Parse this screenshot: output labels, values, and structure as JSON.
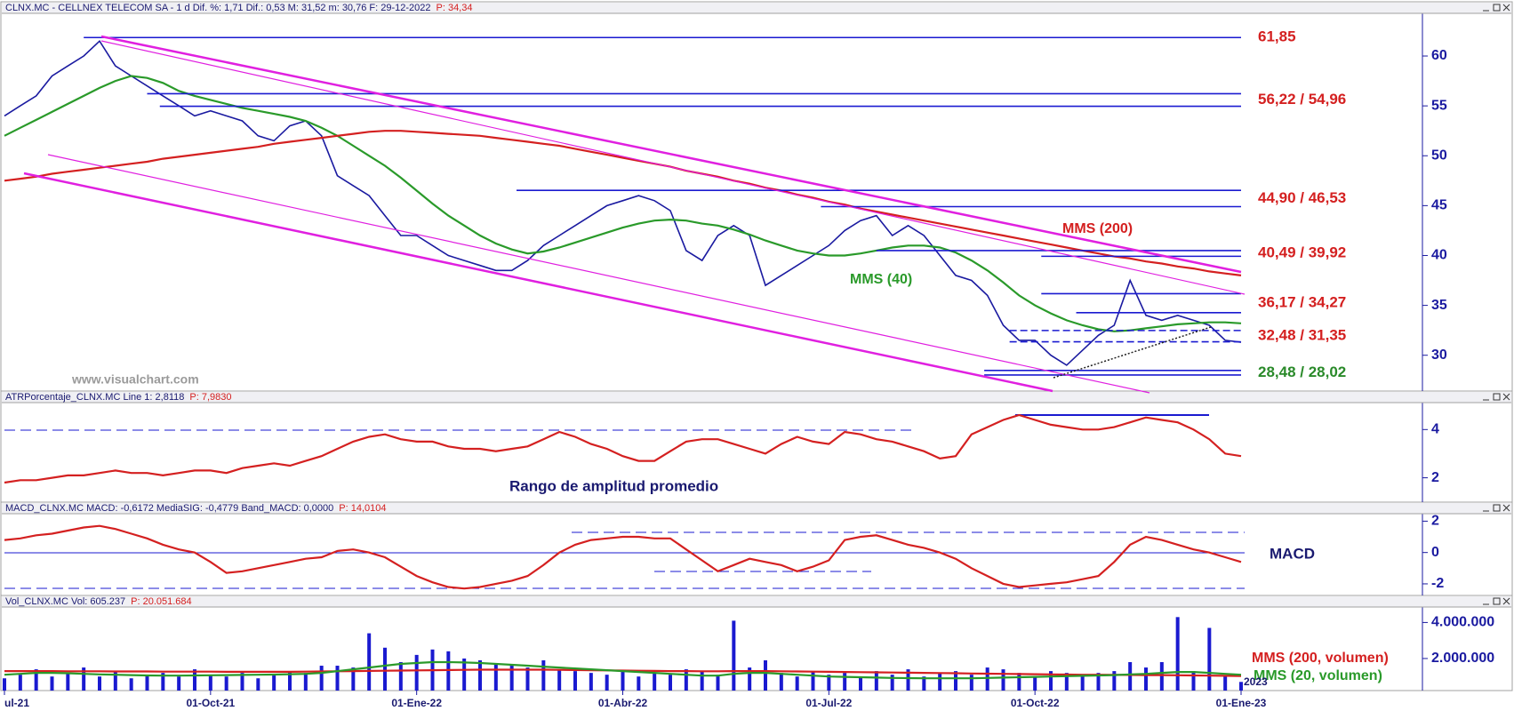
{
  "chart_data": [
    {
      "type": "line",
      "title": "CLNX.MC - CELLNEX TELECOM SA - 1 d Dif. %: 1,71 Dif.: 0,53 M: 31,52 m: 30,76 F: 29-12-2022",
      "price_label": "P: 34,34",
      "categories": [
        "ul-21",
        null,
        null,
        null,
        null,
        null,
        null,
        null,
        null,
        null,
        null,
        null,
        null,
        "01-Oct-21",
        null,
        null,
        null,
        null,
        null,
        null,
        null,
        null,
        null,
        null,
        null,
        null,
        "01-Ene-22",
        null,
        null,
        null,
        null,
        null,
        null,
        null,
        null,
        null,
        null,
        null,
        null,
        "01-Abr-22",
        null,
        null,
        null,
        null,
        null,
        null,
        null,
        null,
        null,
        null,
        null,
        null,
        "01-Jul-22",
        null,
        null,
        null,
        null,
        null,
        null,
        null,
        null,
        null,
        null,
        null,
        null,
        "01-Oct-22",
        null,
        null,
        null,
        null,
        null,
        null,
        null,
        null,
        null,
        null,
        null,
        null,
        "01-Ene-23"
      ],
      "ylim": [
        26.41,
        64.19
      ],
      "yticks": [
        30,
        35,
        40,
        45,
        50,
        55,
        60
      ],
      "series": [
        {
          "color": "#1a1aa0",
          "values": [
            54,
            55,
            56,
            58,
            59,
            60,
            61.5,
            59,
            58,
            57,
            56,
            55,
            54,
            54.5,
            54,
            53.5,
            52,
            51.5,
            53,
            53.5,
            52,
            48,
            47,
            46,
            44,
            42,
            42,
            41,
            40,
            39.5,
            39,
            38.5,
            38.5,
            39.5,
            41,
            42,
            43,
            44,
            45,
            45.5,
            46,
            45.5,
            44.5,
            40.5,
            39.5,
            42,
            43,
            42,
            37,
            38,
            39,
            40,
            41,
            42.5,
            43.5,
            44,
            42,
            43,
            42,
            40,
            38,
            37.5,
            36,
            33,
            31.5,
            31.5,
            30,
            29,
            30.5,
            32,
            33,
            37.5,
            34,
            33.5,
            34,
            33.5,
            33,
            31.5,
            31.3
          ]
        },
        {
          "name": "MMS (40)",
          "color": "#2a9a2a",
          "values": [
            52,
            52.8,
            53.6,
            54.4,
            55.2,
            56,
            56.8,
            57.5,
            58,
            57.8,
            57.3,
            56.5,
            56,
            55.6,
            55.2,
            54.8,
            54.5,
            54.2,
            53.9,
            53.5,
            52.8,
            52,
            51,
            50,
            49,
            47.8,
            46.5,
            45.2,
            44,
            43,
            42,
            41.2,
            40.6,
            40.2,
            40.4,
            40.8,
            41.3,
            41.8,
            42.3,
            42.8,
            43.2,
            43.5,
            43.6,
            43.5,
            43.2,
            43,
            42.6,
            42.1,
            41.5,
            41,
            40.5,
            40.2,
            40,
            40,
            40.2,
            40.5,
            40.8,
            41,
            41,
            40.8,
            40.3,
            39.5,
            38.5,
            37.3,
            36,
            35,
            34.2,
            33.5,
            33,
            32.6,
            32.4,
            32.5,
            32.7,
            32.9,
            33.1,
            33.2,
            33.3,
            33.3,
            33.2
          ]
        },
        {
          "name": "MMS (200)",
          "color": "#d42020",
          "values": [
            47.5,
            47.7,
            47.9,
            48.2,
            48.4,
            48.6,
            48.8,
            49,
            49.2,
            49.4,
            49.7,
            49.9,
            50.1,
            50.3,
            50.5,
            50.7,
            50.9,
            51.2,
            51.4,
            51.6,
            51.8,
            52,
            52.2,
            52.4,
            52.5,
            52.5,
            52.4,
            52.3,
            52.2,
            52.1,
            52,
            51.8,
            51.6,
            51.4,
            51.2,
            51,
            50.7,
            50.4,
            50.1,
            49.8,
            49.5,
            49.2,
            48.9,
            48.5,
            48.2,
            47.9,
            47.5,
            47.2,
            46.8,
            46.5,
            46.1,
            45.8,
            45.4,
            45.1,
            44.7,
            44.4,
            44.1,
            43.8,
            43.5,
            43.2,
            42.9,
            42.6,
            42.3,
            42,
            41.7,
            41.4,
            41.1,
            40.8,
            40.5,
            40.2,
            39.9,
            39.7,
            39.4,
            39.2,
            38.9,
            38.7,
            38.4,
            38.2,
            38
          ]
        }
      ],
      "levels": [
        {
          "label": "61,85",
          "color": "#d42020",
          "values": [
            61.85
          ]
        },
        {
          "label": "56,22 / 54,96",
          "color": "#d42020",
          "values": [
            56.22,
            54.96
          ]
        },
        {
          "label": "44,90 / 46,53",
          "color": "#d42020",
          "values": [
            44.9,
            46.53
          ]
        },
        {
          "label": "40,49 / 39,92",
          "color": "#d42020",
          "values": [
            40.49,
            39.92
          ]
        },
        {
          "label": "36,17 / 34,27",
          "color": "#d42020",
          "values": [
            36.17,
            34.27
          ]
        },
        {
          "label": "32,48 / 31,35",
          "color": "#d42020",
          "values": [
            32.48,
            31.35
          ]
        },
        {
          "label": "28,48 / 28,02",
          "color": "#2a8a2a",
          "values": [
            28.48,
            28.02
          ]
        }
      ],
      "annotations": [
        {
          "text": "www.visualchart.com",
          "color": "#9a9a9a"
        }
      ]
    },
    {
      "type": "line",
      "title": "ATRPorcentaje_CLNX.MC Line 1: 2,8118",
      "price_label": "P: 7,9830",
      "ylim": [
        0.99,
        5.08
      ],
      "yticks": [
        2,
        4
      ],
      "series": [
        {
          "color": "#d42020",
          "values": [
            1.8,
            1.9,
            1.9,
            2.0,
            2.1,
            2.1,
            2.2,
            2.3,
            2.2,
            2.2,
            2.1,
            2.2,
            2.3,
            2.3,
            2.2,
            2.4,
            2.5,
            2.6,
            2.5,
            2.7,
            2.9,
            3.2,
            3.5,
            3.7,
            3.8,
            3.6,
            3.5,
            3.5,
            3.3,
            3.2,
            3.2,
            3.1,
            3.2,
            3.3,
            3.6,
            3.9,
            3.7,
            3.4,
            3.2,
            2.9,
            2.7,
            2.7,
            3.1,
            3.5,
            3.6,
            3.6,
            3.4,
            3.2,
            3.0,
            3.4,
            3.7,
            3.5,
            3.4,
            3.9,
            3.8,
            3.6,
            3.5,
            3.3,
            3.1,
            2.8,
            2.9,
            3.8,
            4.1,
            4.4,
            4.6,
            4.4,
            4.2,
            4.1,
            4.0,
            4.0,
            4.1,
            4.3,
            4.5,
            4.4,
            4.3,
            4.0,
            3.6,
            3.0,
            2.9
          ]
        }
      ],
      "annotations": [
        {
          "text": "Rango de amplitud promedio",
          "color": "#1a1a70"
        }
      ]
    },
    {
      "type": "line",
      "title": "MACD_CLNX.MC MACD: -0,6172 MediaSIG: -0,4779 Band_MACD: 0,0000",
      "price_label": "P: 14,0104",
      "ylim": [
        -2.74,
        2.42
      ],
      "yticks": [
        2,
        0,
        -2
      ],
      "series": [
        {
          "color": "#d42020",
          "values": [
            0.8,
            0.9,
            1.1,
            1.2,
            1.4,
            1.6,
            1.7,
            1.5,
            1.2,
            0.9,
            0.5,
            0.2,
            0,
            -0.6,
            -1.3,
            -1.2,
            -1.0,
            -0.8,
            -0.6,
            -0.4,
            -0.3,
            0.1,
            0.2,
            0,
            -0.3,
            -0.9,
            -1.5,
            -1.9,
            -2.2,
            -2.3,
            -2.2,
            -2.0,
            -1.8,
            -1.5,
            -0.8,
            0,
            0.5,
            0.8,
            0.9,
            1.0,
            1.0,
            0.9,
            0.9,
            0.2,
            -0.5,
            -1.2,
            -0.8,
            -0.4,
            -0.6,
            -0.8,
            -1.2,
            -0.9,
            -0.5,
            0.8,
            1.0,
            1.1,
            0.8,
            0.5,
            0.3,
            0,
            -0.4,
            -1.0,
            -1.5,
            -2.0,
            -2.2,
            -2.1,
            -2.0,
            -1.9,
            -1.7,
            -1.5,
            -0.6,
            0.5,
            1.0,
            0.8,
            0.5,
            0.2,
            0,
            -0.3,
            -0.6
          ]
        }
      ],
      "annotations": [
        {
          "text": "MACD",
          "color": "#1a1a70"
        }
      ]
    },
    {
      "type": "bar",
      "title": "Vol_CLNX.MC Vol: 605.237",
      "price_label": "P: 20.051.684",
      "color": "#1a1ad0",
      "ylim": [
        220000,
        4810000
      ],
      "yticks": [
        {
          "value": 4000000,
          "label": "4.000.000"
        },
        {
          "value": 2000000,
          "label": "2.000.000"
        }
      ],
      "values": [
        900000,
        1100000,
        1400000,
        1000000,
        1200000,
        1500000,
        1000000,
        1300000,
        900000,
        1100000,
        1200000,
        1000000,
        1400000,
        1100000,
        1000000,
        1200000,
        900000,
        1100000,
        1300000,
        1200000,
        1600000,
        1600000,
        1500000,
        3400000,
        2600000,
        1800000,
        2200000,
        2500000,
        2400000,
        2000000,
        1900000,
        1700000,
        1600000,
        1500000,
        1900000,
        1400000,
        1300000,
        1200000,
        1100000,
        1300000,
        1000000,
        1200000,
        1100000,
        1400000,
        1300000,
        1100000,
        4100000,
        1500000,
        1900000,
        1200000,
        1000000,
        1300000,
        1100000,
        1200000,
        1000000,
        1300000,
        1100000,
        1400000,
        1000000,
        1200000,
        1300000,
        1100000,
        1500000,
        1400000,
        1200000,
        1000000,
        1300000,
        1200000,
        1100000,
        1200000,
        1300000,
        1800000,
        1500000,
        1800000,
        4300000,
        1300000,
        3700000,
        1000000,
        700000
      ],
      "series": [
        {
          "name": "MMS (200, volumen)",
          "color": "#d42020",
          "values": [
            1300000,
            1300000,
            1300000,
            1300000,
            1290000,
            1290000,
            1290000,
            1280000,
            1280000,
            1280000,
            1270000,
            1270000,
            1270000,
            1270000,
            1260000,
            1260000,
            1260000,
            1260000,
            1260000,
            1270000,
            1280000,
            1290000,
            1300000,
            1310000,
            1320000,
            1330000,
            1340000,
            1350000,
            1360000,
            1370000,
            1380000,
            1380000,
            1380000,
            1380000,
            1380000,
            1370000,
            1360000,
            1350000,
            1340000,
            1330000,
            1320000,
            1310000,
            1300000,
            1300000,
            1290000,
            1290000,
            1300000,
            1300000,
            1300000,
            1290000,
            1280000,
            1270000,
            1260000,
            1250000,
            1240000,
            1230000,
            1220000,
            1210000,
            1200000,
            1190000,
            1180000,
            1170000,
            1160000,
            1150000,
            1140000,
            1130000,
            1120000,
            1110000,
            1100000,
            1100000,
            1090000,
            1090000,
            1080000,
            1080000,
            1070000,
            1060000,
            1050000,
            1040000,
            1030000
          ]
        },
        {
          "name": "MMS (20, volumen)",
          "color": "#2a9a2a",
          "values": [
            1100000,
            1150000,
            1200000,
            1200000,
            1180000,
            1150000,
            1120000,
            1100000,
            1080000,
            1060000,
            1050000,
            1050000,
            1060000,
            1070000,
            1080000,
            1090000,
            1100000,
            1110000,
            1130000,
            1150000,
            1200000,
            1300000,
            1400000,
            1500000,
            1600000,
            1700000,
            1750000,
            1800000,
            1800000,
            1780000,
            1750000,
            1700000,
            1650000,
            1600000,
            1550000,
            1500000,
            1450000,
            1400000,
            1350000,
            1300000,
            1250000,
            1200000,
            1150000,
            1100000,
            1050000,
            1050000,
            1150000,
            1200000,
            1200000,
            1150000,
            1100000,
            1050000,
            1000000,
            980000,
            960000,
            940000,
            920000,
            910000,
            900000,
            900000,
            900000,
            900000,
            920000,
            940000,
            960000,
            980000,
            1000000,
            1020000,
            1040000,
            1060000,
            1080000,
            1120000,
            1150000,
            1200000,
            1250000,
            1250000,
            1200000,
            1150000,
            1100000
          ]
        }
      ],
      "annotations": [
        {
          "text": "2023",
          "color": "#1a1a70"
        }
      ]
    }
  ]
}
